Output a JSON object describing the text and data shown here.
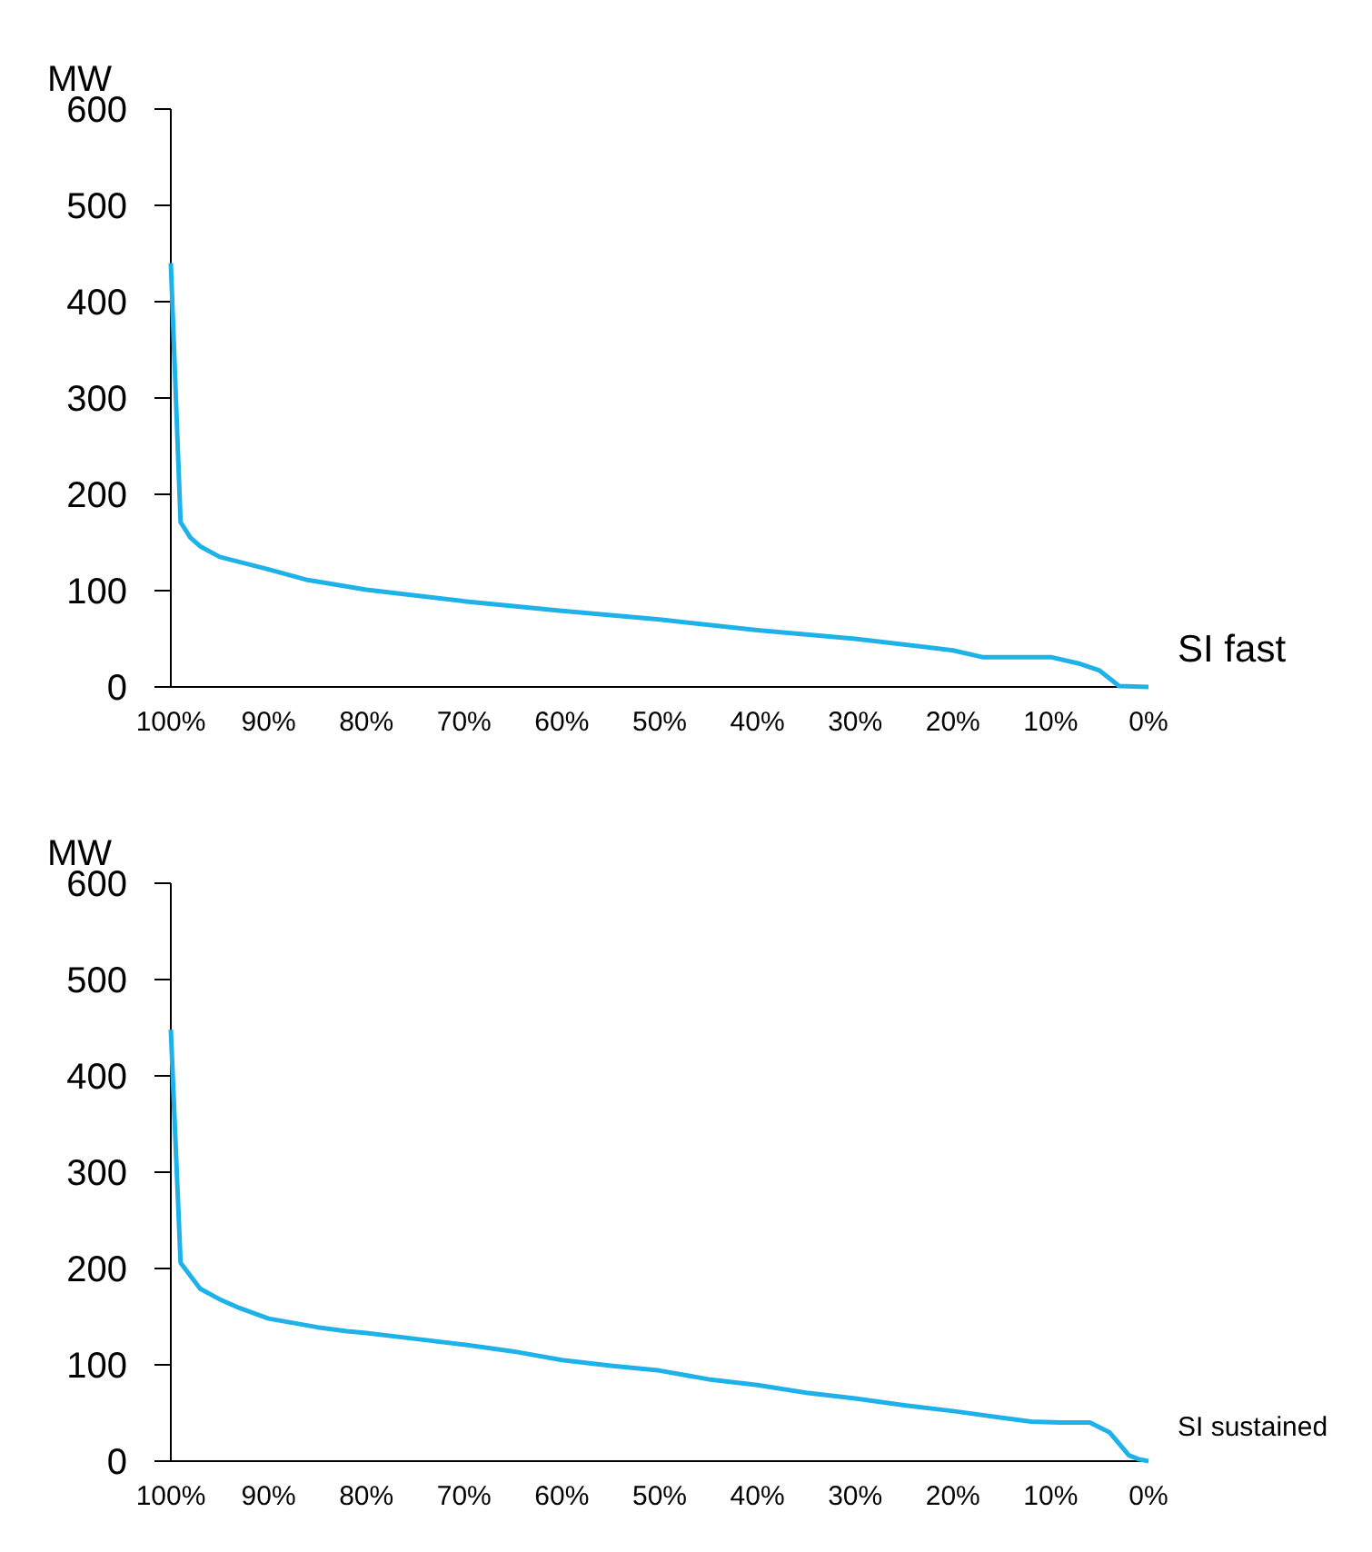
{
  "chart_data": [
    {
      "type": "line",
      "ylabel": "MW",
      "xlabel": "SI fast",
      "xlim": [
        100,
        0
      ],
      "xticks": [
        {
          "value": 100,
          "label": "100%"
        },
        {
          "value": 90,
          "label": "90%"
        },
        {
          "value": 80,
          "label": "80%"
        },
        {
          "value": 70,
          "label": "70%"
        },
        {
          "value": 60,
          "label": "60%"
        },
        {
          "value": 50,
          "label": "50%"
        },
        {
          "value": 40,
          "label": "40%"
        },
        {
          "value": 30,
          "label": "30%"
        },
        {
          "value": 20,
          "label": "20%"
        },
        {
          "value": 10,
          "label": "10%"
        },
        {
          "value": 0,
          "label": "0%"
        }
      ],
      "ylim": [
        0,
        600
      ],
      "yticks": [
        0,
        100,
        200,
        300,
        400,
        500,
        600
      ],
      "grid": false,
      "marker": "none",
      "series": [
        {
          "color": "#1fb2e8",
          "x": [
            100,
            99,
            98,
            97,
            95,
            90,
            86,
            80,
            70,
            60,
            50,
            40,
            30,
            20,
            17,
            10,
            7,
            5,
            3,
            0
          ],
          "values": [
            440,
            171,
            155,
            146,
            135,
            122,
            111,
            101,
            89,
            79,
            70,
            59,
            50,
            38,
            31,
            31,
            24,
            17,
            1,
            0
          ]
        }
      ]
    },
    {
      "type": "line",
      "ylabel": "MW",
      "xlabel": "SI sustained",
      "xlim": [
        100,
        0
      ],
      "xticks": [
        {
          "value": 100,
          "label": "100%"
        },
        {
          "value": 90,
          "label": "90%"
        },
        {
          "value": 80,
          "label": "80%"
        },
        {
          "value": 70,
          "label": "70%"
        },
        {
          "value": 60,
          "label": "60%"
        },
        {
          "value": 50,
          "label": "50%"
        },
        {
          "value": 40,
          "label": "40%"
        },
        {
          "value": 30,
          "label": "30%"
        },
        {
          "value": 20,
          "label": "20%"
        },
        {
          "value": 10,
          "label": "10%"
        },
        {
          "value": 0,
          "label": "0%"
        }
      ],
      "ylim": [
        0,
        600
      ],
      "yticks": [
        0,
        100,
        200,
        300,
        400,
        500,
        600
      ],
      "grid": false,
      "marker": "none",
      "series": [
        {
          "color": "#1fb2e8",
          "x": [
            100,
            99,
            97,
            95,
            93,
            90,
            85,
            82,
            80,
            75,
            70,
            65,
            60,
            55,
            50,
            45,
            40,
            35,
            30,
            25,
            20,
            15,
            12,
            9,
            6,
            4,
            2,
            1,
            0
          ],
          "values": [
            448,
            206,
            179,
            168,
            159,
            148,
            139,
            135,
            133,
            127,
            121,
            114,
            105,
            99,
            94,
            85,
            79,
            71,
            65,
            58,
            52,
            45,
            41,
            40,
            40,
            30,
            6,
            2,
            0
          ]
        }
      ]
    }
  ]
}
